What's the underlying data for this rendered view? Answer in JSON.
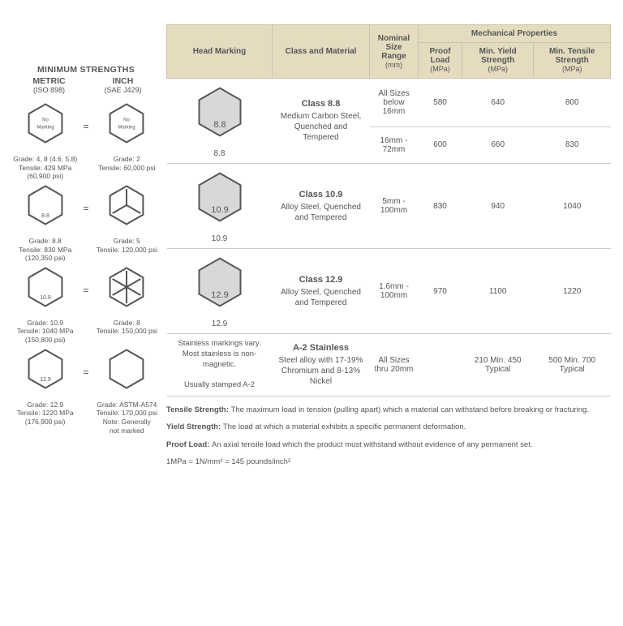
{
  "left": {
    "title": "MINIMUM STRENGTHS",
    "metric_label": "METRIC",
    "metric_sub": "(ISO 898)",
    "inch_label": "INCH",
    "inch_sub": "(SAE J429)",
    "rows": [
      {
        "metric": {
          "marking": "No\nMarking",
          "hex_fill": false,
          "grade": "Grade: 4, 8 (4.6, 5.8)",
          "tensile": "Tensile: 429 MPa",
          "psi": "(60,900 psi)"
        },
        "inch": {
          "marking": "No\nMarking",
          "hex_fill": false,
          "radial": 0,
          "grade": "Grade: 2",
          "tensile": "Tensile: 60,000 psi"
        }
      },
      {
        "metric": {
          "marking": "8.8",
          "hex_fill": false,
          "grade": "Grade: 8.8",
          "tensile": "Tensile: 830 MPa",
          "psi": "(120,350 psi)"
        },
        "inch": {
          "hex_fill": false,
          "radial": 3,
          "grade": "Grade: 5",
          "tensile": "Tensile: 120,000 psi"
        }
      },
      {
        "metric": {
          "marking": "10.9",
          "hex_fill": false,
          "grade": "Grade: 10.9",
          "tensile": "Tensile: 1040 MPa",
          "psi": "(150,800 psi)"
        },
        "inch": {
          "hex_fill": false,
          "radial": 6,
          "grade": "Grade: 8",
          "tensile": "Tensile: 150,000 psi"
        }
      },
      {
        "metric": {
          "marking": "12.9",
          "hex_fill": false,
          "grade": "Grade: 12.9",
          "tensile": "Tensile: 1220 MPa",
          "psi": "(176,900 psi)"
        },
        "inch": {
          "hex_fill": false,
          "inner_hex": true,
          "grade": "Grade: ASTM-A574",
          "tensile": "Tensile: 170,000 psi",
          "note": "Note: Generally\nnot marked"
        }
      }
    ]
  },
  "table": {
    "headers": {
      "head_marking": "Head Marking",
      "class_material": "Class and Material",
      "nominal": "Nominal Size Range",
      "nominal_sub": "(mm)",
      "mech": "Mechanical Properties",
      "proof": "Proof Load",
      "proof_sub": "(MPa)",
      "yield": "Min. Yield Strength",
      "yield_sub": "(MPa)",
      "tensile": "Min. Tensile Strength",
      "tensile_sub": "(MPa)"
    },
    "rows": [
      {
        "marking": "8.8",
        "class_title": "Class 8.8",
        "class_desc": "Medium Carbon Steel, Quenched and Tempered",
        "subrows": [
          {
            "range": "All Sizes below 16mm",
            "proof": "580",
            "yield": "640",
            "tensile": "800"
          },
          {
            "range": "16mm - 72mm",
            "proof": "600",
            "yield": "660",
            "tensile": "830"
          }
        ]
      },
      {
        "marking": "10.9",
        "class_title": "Class 10.9",
        "class_desc": "Alloy Steel, Quenched and Tempered",
        "subrows": [
          {
            "range": "5mm - 100mm",
            "proof": "830",
            "yield": "940",
            "tensile": "1040"
          }
        ]
      },
      {
        "marking": "12.9",
        "class_title": "Class 12.9",
        "class_desc": "Alloy Steel, Quenched and Tempered",
        "subrows": [
          {
            "range": "1.6mm - 100mm",
            "proof": "970",
            "yield": "1100",
            "tensile": "1220"
          }
        ]
      },
      {
        "stainless": true,
        "marking_text": "Stainless markings vary. Most stainless is non-magnetic.\n\nUsually stamped A-2",
        "class_title": "A-2 Stainless",
        "class_desc": "Steel alloy with 17-19% Chromium and 8-13% Nickel",
        "subrows": [
          {
            "range": "All Sizes thru 20mm",
            "proof": "",
            "yield": "210 Min. 450 Typical",
            "tensile": "500 Min. 700 Typical"
          }
        ]
      }
    ]
  },
  "definitions": {
    "tensile": "The maximum load in tension (pulling apart) which a material can withstand before breaking or fracturing.",
    "yield": "The load at which a material exhibits a specific permanent deformation.",
    "proof": "An axial tensile load which the product must withstand without evidence of any permanent set.",
    "conversion": "1MPa = 1N/mm² = 145 pounds/inch²"
  }
}
